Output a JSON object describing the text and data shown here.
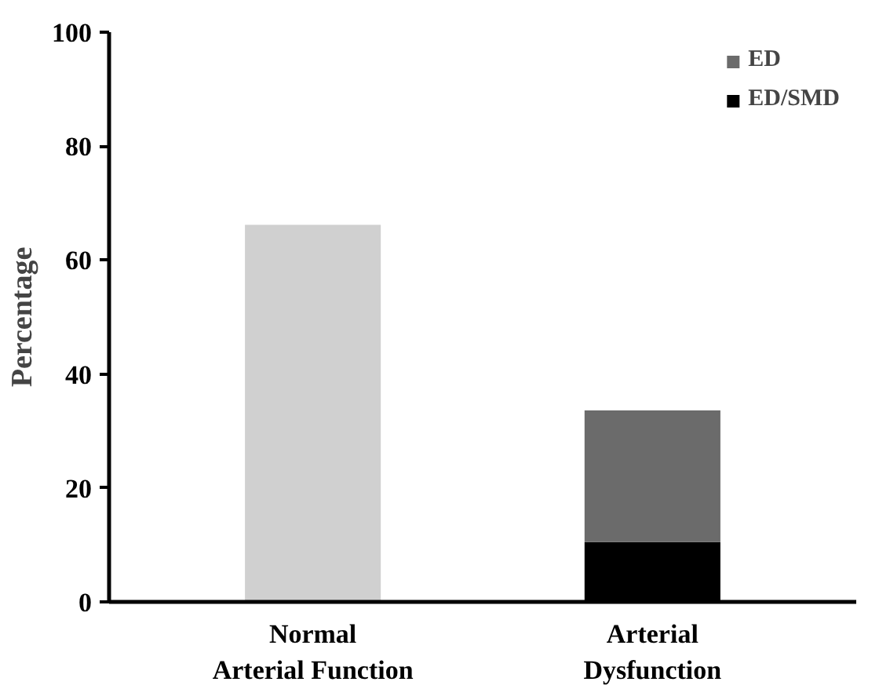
{
  "chart_data": {
    "type": "bar",
    "stacked": true,
    "ylabel": "Percentage",
    "categories": [
      "Normal\nArterial Function",
      "Arterial\nDysfunction"
    ],
    "series": [
      {
        "color": "#d0d0d0",
        "values": [
          66.2,
          null
        ]
      },
      {
        "name": "ED/SMD",
        "color": "#000000",
        "values": [
          null,
          10.5
        ]
      },
      {
        "name": "ED",
        "color": "#6b6b6b",
        "values": [
          null,
          23.1
        ]
      }
    ],
    "ylim": [
      0,
      100
    ],
    "yticks": [
      0,
      20,
      40,
      60,
      80,
      100
    ],
    "grid": false,
    "legend": "top right"
  }
}
